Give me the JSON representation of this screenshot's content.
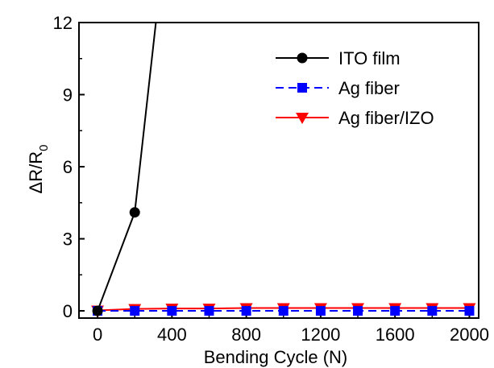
{
  "chart_data": {
    "type": "line",
    "xlabel": "Bending Cycle (N)",
    "ylabel_main": "ΔR/R",
    "ylabel_sub": "0",
    "xlim": [
      -100,
      2050
    ],
    "ylim": [
      -0.3,
      12
    ],
    "xticks": [
      0,
      400,
      800,
      1200,
      1600,
      2000
    ],
    "xtick_labels": [
      "0",
      "400",
      "800",
      "1200",
      "1600",
      "2000"
    ],
    "yticks": [
      0,
      3,
      6,
      9,
      12
    ],
    "ytick_labels": [
      "0",
      "3",
      "6",
      "9",
      "12"
    ],
    "legend_position": "top-right",
    "series": [
      {
        "name": "ITO film",
        "color": "#000000",
        "marker": "circle",
        "line": "solid",
        "x": [
          0,
          200,
          400
        ],
        "y": [
          0,
          4.1,
          18
        ]
      },
      {
        "name": "Ag fiber",
        "color": "#0000ff",
        "marker": "square",
        "line": "dashed",
        "x": [
          0,
          200,
          400,
          600,
          800,
          1000,
          1200,
          1400,
          1600,
          1800,
          2000
        ],
        "y": [
          0,
          0,
          0,
          0,
          0,
          0,
          0,
          0,
          0,
          0,
          0
        ]
      },
      {
        "name": "Ag fiber/IZO",
        "color": "#ff0000",
        "marker": "triangle-down",
        "line": "solid",
        "x": [
          0,
          200,
          400,
          600,
          800,
          1000,
          1200,
          1400,
          1600,
          1800,
          2000
        ],
        "y": [
          0.02,
          0.08,
          0.1,
          0.1,
          0.12,
          0.12,
          0.12,
          0.12,
          0.12,
          0.12,
          0.12
        ]
      }
    ]
  }
}
